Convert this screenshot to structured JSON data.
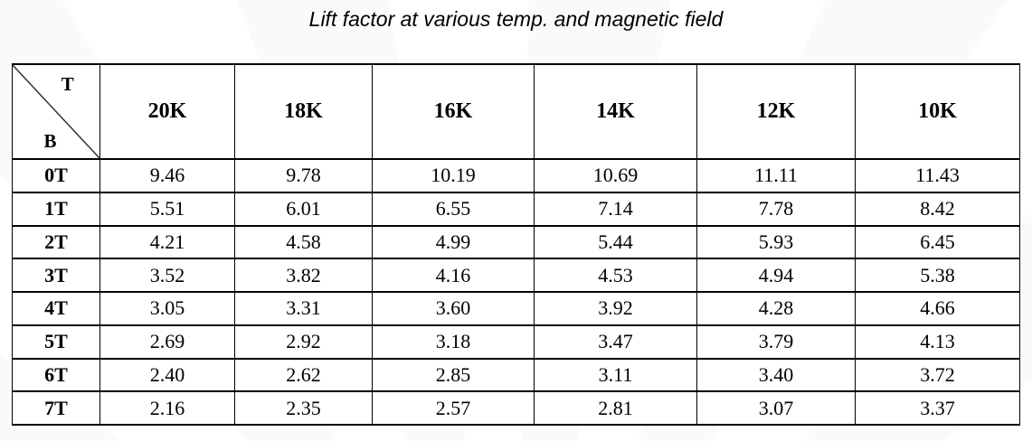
{
  "title": "Lift factor at various temp. and magnetic field",
  "table": {
    "corner": {
      "top_label": "T",
      "bottom_label": "B"
    },
    "columns": [
      "20K",
      "18K",
      "16K",
      "14K",
      "12K",
      "10K"
    ],
    "rows": [
      {
        "label": "0T",
        "values": [
          "9.46",
          "9.78",
          "10.19",
          "10.69",
          "11.11",
          "11.43"
        ]
      },
      {
        "label": "1T",
        "values": [
          "5.51",
          "6.01",
          "6.55",
          "7.14",
          "7.78",
          "8.42"
        ]
      },
      {
        "label": "2T",
        "values": [
          "4.21",
          "4.58",
          "4.99",
          "5.44",
          "5.93",
          "6.45"
        ]
      },
      {
        "label": "3T",
        "values": [
          "3.52",
          "3.82",
          "4.16",
          "4.53",
          "4.94",
          "5.38"
        ]
      },
      {
        "label": "4T",
        "values": [
          "3.05",
          "3.31",
          "3.60",
          "3.92",
          "4.28",
          "4.66"
        ]
      },
      {
        "label": "5T",
        "values": [
          "2.69",
          "2.92",
          "3.18",
          "3.47",
          "3.79",
          "4.13"
        ]
      },
      {
        "label": "6T",
        "values": [
          "2.40",
          "2.62",
          "2.85",
          "3.11",
          "3.40",
          "3.72"
        ]
      },
      {
        "label": "7T",
        "values": [
          "2.16",
          "2.35",
          "2.57",
          "2.81",
          "3.07",
          "3.37"
        ]
      }
    ]
  },
  "chart_data": {
    "type": "table",
    "title": "Lift factor at various temp. and magnetic field",
    "column_axis": "T (temperature)",
    "row_axis": "B (magnetic field)",
    "columns": [
      "20K",
      "18K",
      "16K",
      "14K",
      "12K",
      "10K"
    ],
    "rows": [
      "0T",
      "1T",
      "2T",
      "3T",
      "4T",
      "5T",
      "6T",
      "7T"
    ],
    "values": [
      [
        9.46,
        9.78,
        10.19,
        10.69,
        11.11,
        11.43
      ],
      [
        5.51,
        6.01,
        6.55,
        7.14,
        7.78,
        8.42
      ],
      [
        4.21,
        4.58,
        4.99,
        5.44,
        5.93,
        6.45
      ],
      [
        3.52,
        3.82,
        4.16,
        4.53,
        4.94,
        5.38
      ],
      [
        3.05,
        3.31,
        3.6,
        3.92,
        4.28,
        4.66
      ],
      [
        2.69,
        2.92,
        3.18,
        3.47,
        3.79,
        4.13
      ],
      [
        2.4,
        2.62,
        2.85,
        3.11,
        3.4,
        3.72
      ],
      [
        2.16,
        2.35,
        2.57,
        2.81,
        3.07,
        3.37
      ]
    ]
  }
}
